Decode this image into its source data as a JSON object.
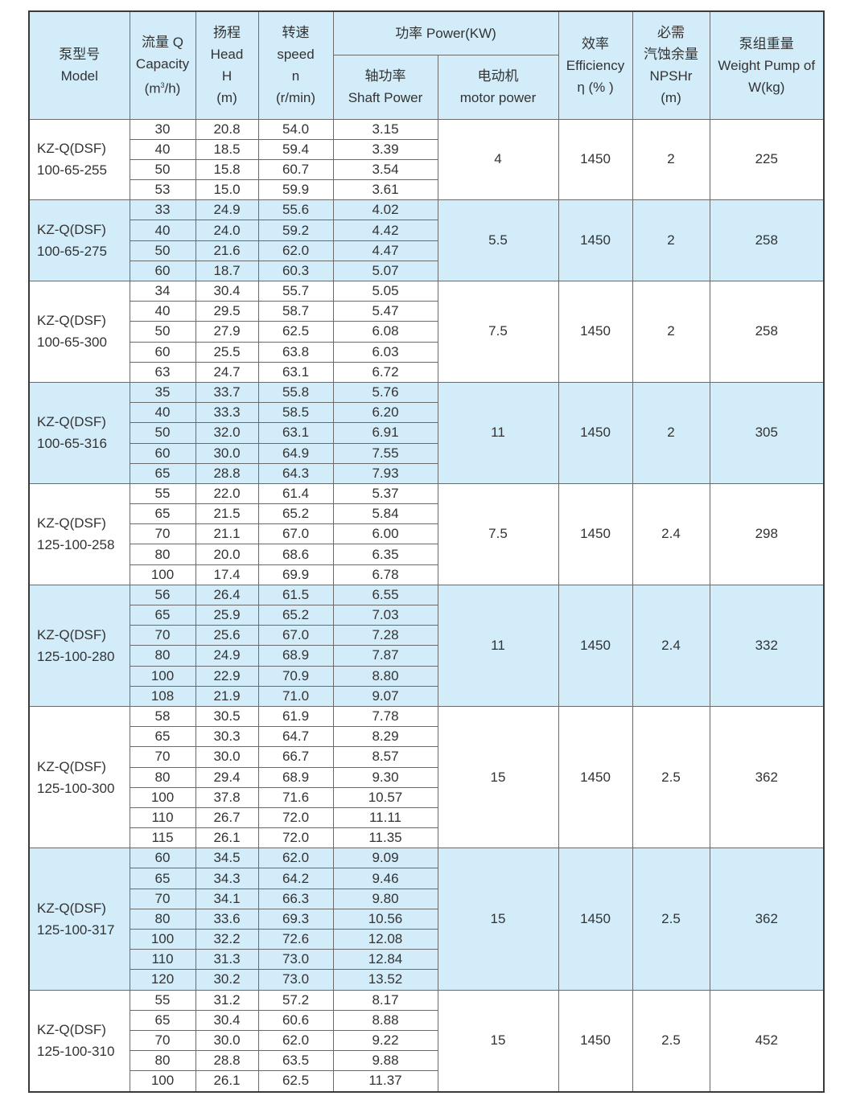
{
  "header": {
    "model": [
      "泵型号",
      "Model"
    ],
    "capacity": [
      "流量 Q",
      "Capacity",
      "(m³/h)"
    ],
    "head": [
      "扬程",
      "Head",
      "H",
      "(m)"
    ],
    "speed": [
      "转速",
      "speed",
      "n",
      "(r/min)"
    ],
    "power": "功率 Power(KW)",
    "shaft_power": [
      "轴功率",
      "Shaft Power"
    ],
    "motor_power": [
      "电动机",
      "motor power"
    ],
    "efficiency": [
      "效率",
      "Efficiency",
      "η (% )"
    ],
    "npshr": [
      "必需",
      "汽蚀余量",
      "NPSHr",
      "(m)"
    ],
    "weight": [
      "泵组重量",
      "Weight Pump of",
      "W(kg)"
    ]
  },
  "colors": {
    "header_bg": "#d3ecf9",
    "alt_row_bg": "#d3ecf9",
    "border": "#3a3a3a"
  },
  "groups": [
    {
      "model": [
        "KZ-Q(DSF)",
        "100-65-255"
      ],
      "motor": "4",
      "efficiency": "1450",
      "npshr": "2",
      "weight": "225",
      "rows": [
        [
          "30",
          "20.8",
          "54.0",
          "3.15"
        ],
        [
          "40",
          "18.5",
          "59.4",
          "3.39"
        ],
        [
          "50",
          "15.8",
          "60.7",
          "3.54"
        ],
        [
          "53",
          "15.0",
          "59.9",
          "3.61"
        ]
      ]
    },
    {
      "model": [
        "KZ-Q(DSF)",
        "100-65-275"
      ],
      "motor": "5.5",
      "efficiency": "1450",
      "npshr": "2",
      "weight": "258",
      "rows": [
        [
          "33",
          "24.9",
          "55.6",
          "4.02"
        ],
        [
          "40",
          "24.0",
          "59.2",
          "4.42"
        ],
        [
          "50",
          "21.6",
          "62.0",
          "4.47"
        ],
        [
          "60",
          "18.7",
          "60.3",
          "5.07"
        ]
      ]
    },
    {
      "model": [
        "KZ-Q(DSF)",
        "100-65-300"
      ],
      "motor": "7.5",
      "efficiency": "1450",
      "npshr": "2",
      "weight": "258",
      "rows": [
        [
          "34",
          "30.4",
          "55.7",
          "5.05"
        ],
        [
          "40",
          "29.5",
          "58.7",
          "5.47"
        ],
        [
          "50",
          "27.9",
          "62.5",
          "6.08"
        ],
        [
          "60",
          "25.5",
          "63.8",
          "6.03"
        ],
        [
          "63",
          "24.7",
          "63.1",
          "6.72"
        ]
      ]
    },
    {
      "model": [
        "KZ-Q(DSF)",
        "100-65-316"
      ],
      "motor": "11",
      "efficiency": "1450",
      "npshr": "2",
      "weight": "305",
      "rows": [
        [
          "35",
          "33.7",
          "55.8",
          "5.76"
        ],
        [
          "40",
          "33.3",
          "58.5",
          "6.20"
        ],
        [
          "50",
          "32.0",
          "63.1",
          "6.91"
        ],
        [
          "60",
          "30.0",
          "64.9",
          "7.55"
        ],
        [
          "65",
          "28.8",
          "64.3",
          "7.93"
        ]
      ]
    },
    {
      "model": [
        "KZ-Q(DSF)",
        "125-100-258"
      ],
      "motor": "7.5",
      "efficiency": "1450",
      "npshr": "2.4",
      "weight": "298",
      "rows": [
        [
          "55",
          "22.0",
          "61.4",
          "5.37"
        ],
        [
          "65",
          "21.5",
          "65.2",
          "5.84"
        ],
        [
          "70",
          "21.1",
          "67.0",
          "6.00"
        ],
        [
          "80",
          "20.0",
          "68.6",
          "6.35"
        ],
        [
          "100",
          "17.4",
          "69.9",
          "6.78"
        ]
      ]
    },
    {
      "model": [
        "KZ-Q(DSF)",
        "125-100-280"
      ],
      "motor": "11",
      "efficiency": "1450",
      "npshr": "2.4",
      "weight": "332",
      "rows": [
        [
          "56",
          "26.4",
          "61.5",
          "6.55"
        ],
        [
          "65",
          "25.9",
          "65.2",
          "7.03"
        ],
        [
          "70",
          "25.6",
          "67.0",
          "7.28"
        ],
        [
          "80",
          "24.9",
          "68.9",
          "7.87"
        ],
        [
          "100",
          "22.9",
          "70.9",
          "8.80"
        ],
        [
          "108",
          "21.9",
          "71.0",
          "9.07"
        ]
      ]
    },
    {
      "model": [
        "KZ-Q(DSF)",
        "125-100-300"
      ],
      "motor": "15",
      "efficiency": "1450",
      "npshr": "2.5",
      "weight": "362",
      "rows": [
        [
          "58",
          "30.5",
          "61.9",
          "7.78"
        ],
        [
          "65",
          "30.3",
          "64.7",
          "8.29"
        ],
        [
          "70",
          "30.0",
          "66.7",
          "8.57"
        ],
        [
          "80",
          "29.4",
          "68.9",
          "9.30"
        ],
        [
          "100",
          "37.8",
          "71.6",
          "10.57"
        ],
        [
          "110",
          "26.7",
          "72.0",
          "11.11"
        ],
        [
          "115",
          "26.1",
          "72.0",
          "11.35"
        ]
      ]
    },
    {
      "model": [
        "KZ-Q(DSF)",
        "125-100-317"
      ],
      "motor": "15",
      "efficiency": "1450",
      "npshr": "2.5",
      "weight": "362",
      "rows": [
        [
          "60",
          "34.5",
          "62.0",
          "9.09"
        ],
        [
          "65",
          "34.3",
          "64.2",
          "9.46"
        ],
        [
          "70",
          "34.1",
          "66.3",
          "9.80"
        ],
        [
          "80",
          "33.6",
          "69.3",
          "10.56"
        ],
        [
          "100",
          "32.2",
          "72.6",
          "12.08"
        ],
        [
          "110",
          "31.3",
          "73.0",
          "12.84"
        ],
        [
          "120",
          "30.2",
          "73.0",
          "13.52"
        ]
      ]
    },
    {
      "model": [
        "KZ-Q(DSF)",
        "125-100-310"
      ],
      "motor": "15",
      "efficiency": "1450",
      "npshr": "2.5",
      "weight": "452",
      "rows": [
        [
          "55",
          "31.2",
          "57.2",
          "8.17"
        ],
        [
          "65",
          "30.4",
          "60.6",
          "8.88"
        ],
        [
          "70",
          "30.0",
          "62.0",
          "9.22"
        ],
        [
          "80",
          "28.8",
          "63.5",
          "9.88"
        ],
        [
          "100",
          "26.1",
          "62.5",
          "11.37"
        ]
      ]
    }
  ]
}
